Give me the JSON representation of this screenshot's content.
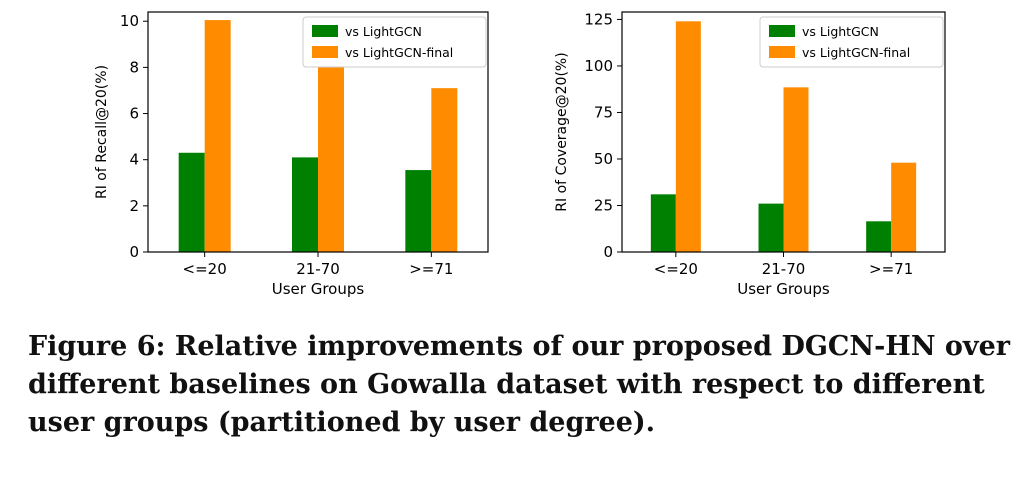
{
  "chart_data": [
    {
      "type": "bar",
      "categories": [
        "<=20",
        "21-70",
        ">=71"
      ],
      "series": [
        {
          "name": "vs LightGCN",
          "values": [
            4.3,
            4.1,
            3.55
          ]
        },
        {
          "name": "vs LightGCN-final",
          "values": [
            10.05,
            8.1,
            7.1
          ]
        }
      ],
      "xlabel": "User Groups",
      "ylabel": "RI of Recall@20(%)",
      "ylim": [
        0,
        10.4
      ],
      "yticks": [
        0,
        2,
        4,
        6,
        8,
        10
      ],
      "legend": "top-right",
      "colors": [
        "#008000",
        "#ff8c00"
      ]
    },
    {
      "type": "bar",
      "categories": [
        "<=20",
        "21-70",
        ">=71"
      ],
      "series": [
        {
          "name": "vs LightGCN",
          "values": [
            31,
            26,
            16.5
          ]
        },
        {
          "name": "vs LightGCN-final",
          "values": [
            124,
            88.5,
            48
          ]
        }
      ],
      "xlabel": "User Groups",
      "ylabel": "RI of Coverage@20(%)",
      "ylim": [
        0,
        129
      ],
      "yticks": [
        0,
        25,
        50,
        75,
        100,
        125
      ],
      "legend": "top-right",
      "colors": [
        "#008000",
        "#ff8c00"
      ]
    }
  ],
  "caption": "Figure 6: Relative improvements of our proposed DGCN-HN over different baselines on Gowalla dataset with respect to different user groups (partitioned by user degree)."
}
